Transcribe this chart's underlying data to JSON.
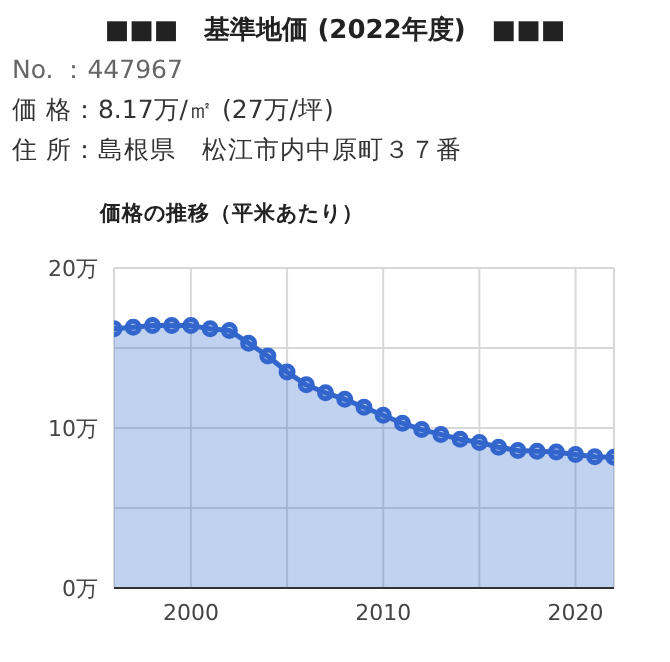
{
  "chart_data": {
    "type": "area",
    "title": "■■■　基準地価 (2022年度)　■■■",
    "subtitle": "価格の推移（平米あたり）",
    "annotations": [
      "No. ：447967",
      "価 格：8.17万/㎡ (27万/坪)",
      "住 所：島根県　松江市内中原町３７番"
    ],
    "x": [
      1996,
      1997,
      1998,
      1999,
      2000,
      2001,
      2002,
      2003,
      2004,
      2005,
      2006,
      2007,
      2008,
      2009,
      2010,
      2011,
      2012,
      2013,
      2014,
      2015,
      2016,
      2017,
      2018,
      2019,
      2020,
      2021,
      2022
    ],
    "series": [
      {
        "color": "#3366cc",
        "values": [
          16.2,
          16.3,
          16.4,
          16.4,
          16.4,
          16.2,
          16.1,
          15.3,
          14.5,
          13.5,
          12.7,
          12.2,
          11.8,
          11.3,
          10.8,
          10.3,
          9.9,
          9.6,
          9.3,
          9.1,
          8.8,
          8.6,
          8.55,
          8.5,
          8.35,
          8.2,
          8.17
        ]
      }
    ],
    "xlim": [
      1996,
      2022
    ],
    "xticks": [
      2000,
      {
        "value": 2005,
        "label": null
      },
      2010,
      {
        "value": 2015,
        "label": null
      },
      2020
    ],
    "ylim": [
      0,
      20
    ],
    "yticks": [
      {
        "value": 0,
        "label": "0万"
      },
      {
        "value": 5,
        "label": null
      },
      {
        "value": 10,
        "label": "10万"
      },
      {
        "value": 15,
        "label": null
      },
      {
        "value": 20,
        "label": "20万"
      }
    ],
    "grid": true,
    "marker": "circle"
  }
}
